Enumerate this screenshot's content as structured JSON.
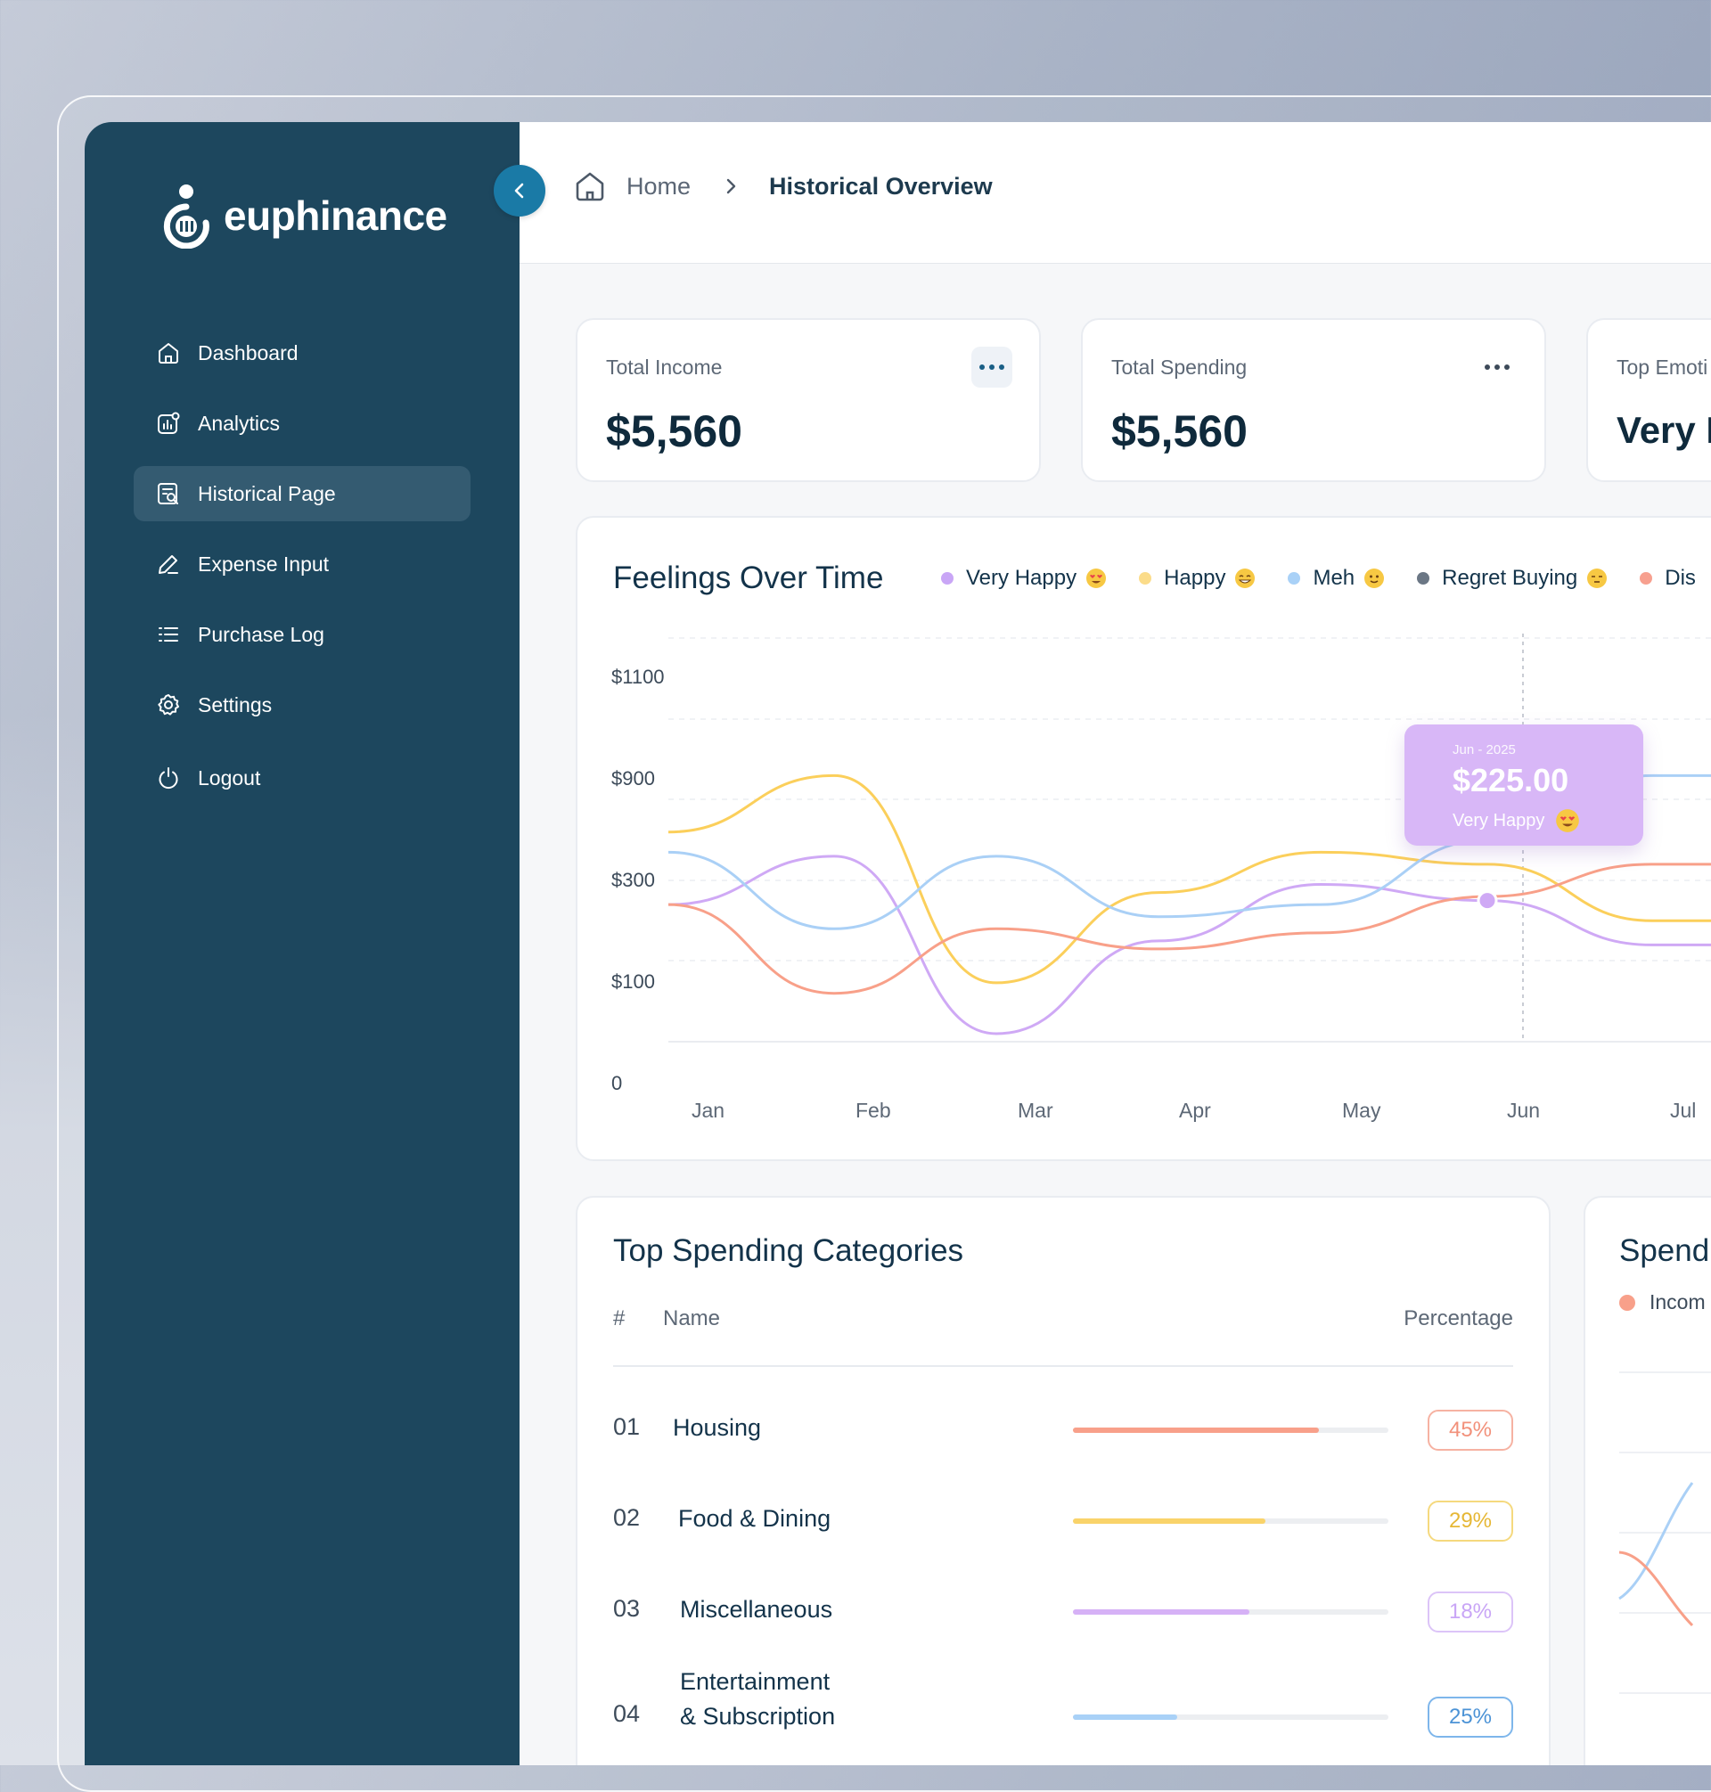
{
  "brand": {
    "name": "euphinance"
  },
  "sidebar": {
    "items": [
      {
        "label": "Dashboard",
        "icon": "home-icon",
        "active": false
      },
      {
        "label": "Analytics",
        "icon": "analytics-icon",
        "active": false
      },
      {
        "label": "Historical Page",
        "icon": "history-icon",
        "active": true
      },
      {
        "label": "Expense Input",
        "icon": "pen-icon",
        "active": false
      },
      {
        "label": "Purchase Log",
        "icon": "list-icon",
        "active": false
      },
      {
        "label": "Settings",
        "icon": "gear-icon",
        "active": false
      }
    ],
    "logout": {
      "label": "Logout",
      "icon": "power-icon"
    }
  },
  "breadcrumb": {
    "home": "Home",
    "current": "Historical Overview"
  },
  "stats": [
    {
      "label": "Total Income",
      "value": "$5,560"
    },
    {
      "label": "Total Spending",
      "value": "$5,560"
    },
    {
      "label": "Top Emoti",
      "value": "Very H"
    }
  ],
  "feelings": {
    "title": "Feelings Over Time",
    "legend": [
      {
        "label": "Very Happy",
        "color": "#c9a6f6"
      },
      {
        "label": "Happy",
        "color": "#fbdc8a"
      },
      {
        "label": "Meh",
        "color": "#a9d1f7"
      },
      {
        "label": "Regret Buying",
        "color": "#6b7785"
      },
      {
        "label": "Dis",
        "color": "#f7a08f"
      }
    ],
    "tooltip": {
      "date": "Jun - 2025",
      "value": "$225.00",
      "mood": "Very Happy"
    }
  },
  "chart_data": {
    "type": "line",
    "title": "Feelings Over Time",
    "x": [
      "Jan",
      "Feb",
      "Mar",
      "Apr",
      "May",
      "Jun",
      "Jul"
    ],
    "yticks": [
      "0",
      "$100",
      "$300",
      "$900",
      "$1100"
    ],
    "series": [
      {
        "name": "Very Happy",
        "color": "#cfa9f5",
        "values": [
          1.7,
          2.3,
          0.1,
          1.25,
          1.95,
          1.75,
          1.2
        ]
      },
      {
        "name": "Happy",
        "color": "#fbcf5b",
        "values": [
          2.6,
          3.3,
          0.73,
          1.85,
          2.35,
          2.2,
          1.5
        ]
      },
      {
        "name": "Meh",
        "color": "#aad0f6",
        "values": [
          2.35,
          1.4,
          2.3,
          1.55,
          1.7,
          2.5,
          3.3
        ]
      },
      {
        "name": "Dis",
        "color": "#f8a089",
        "values": [
          1.7,
          0.6,
          1.4,
          1.15,
          1.35,
          1.8,
          2.2
        ]
      }
    ],
    "highlight": {
      "x": "Jun",
      "value": "$225.00",
      "series": "Very Happy"
    }
  },
  "categories": {
    "title": "Top Spending Categories",
    "columns": {
      "num": "#",
      "name": "Name",
      "pct": "Percentage"
    },
    "rows": [
      {
        "num": "01",
        "name": "Housing",
        "name2": "",
        "pct": "45%",
        "fill": 0.78,
        "color": "#f8a08a"
      },
      {
        "num": "02",
        "name": "Food & Dining",
        "name2": "",
        "pct": "29%",
        "fill": 0.61,
        "color": "#f9d36a"
      },
      {
        "num": "03",
        "name": "Miscellaneous",
        "name2": "",
        "pct": "18%",
        "fill": 0.56,
        "color": "#d6b1f6"
      },
      {
        "num": "04",
        "name": "Entertainment",
        "name2": "& Subscription",
        "pct": "25%",
        "fill": 0.33,
        "color": "#a9d1f7"
      }
    ]
  },
  "spending": {
    "title": "Spend",
    "legend": "Incom",
    "legend_color": "#f8a08a"
  }
}
